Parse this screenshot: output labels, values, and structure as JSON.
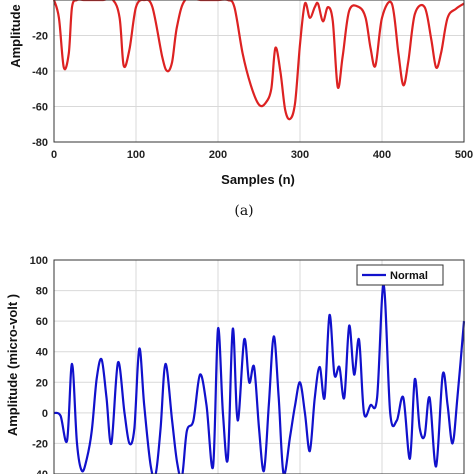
{
  "caption_a": "(a)",
  "chart_data": [
    {
      "type": "line",
      "title": "",
      "xlabel": "Samples (n)",
      "ylabel": "Amplitude",
      "xlim": [
        0,
        500
      ],
      "ylim": [
        -80,
        0
      ],
      "xticks": [
        0,
        100,
        200,
        300,
        400,
        500
      ],
      "yticks": [
        -20,
        -40,
        -60,
        -80
      ],
      "grid": true,
      "color": "#dd2222",
      "series": [
        {
          "name": "",
          "x": [
            0,
            6,
            12,
            18,
            22,
            28,
            36,
            48,
            60,
            72,
            80,
            85,
            92,
            100,
            110,
            120,
            132,
            138,
            144,
            150,
            160,
            180,
            200,
            212,
            220,
            230,
            240,
            250,
            258,
            265,
            270,
            276,
            282,
            288,
            294,
            300,
            306,
            312,
            318,
            322,
            328,
            334,
            340,
            346,
            352,
            360,
            372,
            380,
            386,
            392,
            400,
            412,
            420,
            426,
            432,
            440,
            452,
            460,
            466,
            472,
            480,
            490,
            500
          ],
          "y": [
            0,
            -10,
            -38,
            -30,
            -4,
            0,
            0,
            0,
            0,
            0,
            -10,
            -37,
            -28,
            -4,
            0,
            -4,
            -32,
            -40,
            -35,
            -15,
            0,
            0,
            0,
            0,
            -4,
            -30,
            -48,
            -59,
            -58,
            -50,
            -27,
            -40,
            -62,
            -67,
            -58,
            -25,
            -2,
            -10,
            -4,
            -2,
            -12,
            -4,
            -12,
            -49,
            -32,
            -6,
            -4,
            -10,
            -27,
            -37,
            -10,
            -2,
            -30,
            -48,
            -35,
            -8,
            -4,
            -22,
            -38,
            -30,
            -10,
            -5,
            -2
          ]
        }
      ]
    },
    {
      "type": "line",
      "title": "",
      "xlabel": "",
      "ylabel": "Amplitude (micro-volt )",
      "xlim": [
        0,
        500
      ],
      "ylim": [
        -40,
        100
      ],
      "yticks": [
        100,
        80,
        60,
        40,
        20,
        0,
        -20,
        -40
      ],
      "grid": true,
      "legend": "top-right",
      "color": "#1111cc",
      "series": [
        {
          "name": "Normal",
          "x": [
            0,
            8,
            16,
            22,
            28,
            34,
            40,
            46,
            52,
            58,
            64,
            70,
            78,
            86,
            92,
            98,
            104,
            110,
            118,
            124,
            130,
            136,
            144,
            150,
            156,
            162,
            170,
            178,
            186,
            194,
            200,
            206,
            212,
            218,
            224,
            232,
            238,
            244,
            250,
            256,
            262,
            268,
            274,
            280,
            288,
            294,
            300,
            306,
            312,
            318,
            324,
            330,
            336,
            342,
            348,
            354,
            360,
            366,
            372,
            378,
            386,
            394,
            402,
            410,
            418,
            426,
            434,
            440,
            446,
            452,
            458,
            466,
            474,
            480,
            486,
            492,
            500
          ],
          "y": [
            0,
            -2,
            -18,
            32,
            -20,
            -38,
            -30,
            -12,
            22,
            35,
            10,
            -20,
            33,
            0,
            -20,
            -10,
            42,
            5,
            -35,
            -40,
            -10,
            32,
            -5,
            -32,
            -42,
            -12,
            -5,
            25,
            5,
            -35,
            55,
            0,
            -30,
            55,
            -5,
            48,
            20,
            30,
            -10,
            -38,
            5,
            50,
            10,
            -40,
            -15,
            5,
            20,
            0,
            -25,
            10,
            30,
            10,
            64,
            25,
            30,
            10,
            57,
            25,
            48,
            0,
            5,
            10,
            84,
            0,
            -5,
            10,
            -30,
            22,
            -10,
            -15,
            10,
            -35,
            25,
            5,
            -20,
            10,
            60
          ]
        }
      ]
    }
  ]
}
